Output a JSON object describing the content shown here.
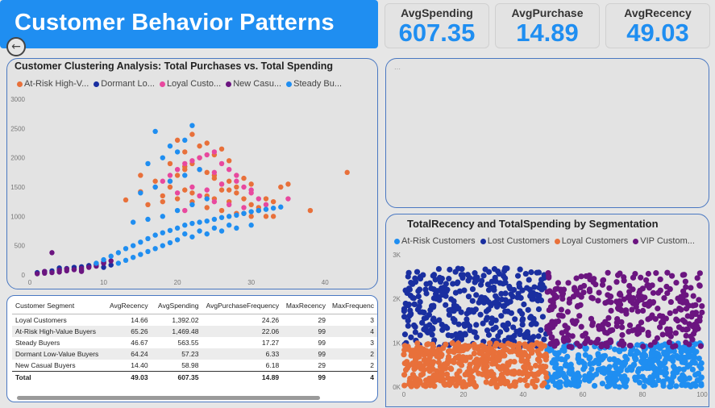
{
  "header": {
    "title": "Customer Behavior Patterns"
  },
  "kpis": [
    {
      "label": "AvgSpending",
      "value": "607.35"
    },
    {
      "label": "AvgPurchase",
      "value": "14.89"
    },
    {
      "label": "AvgRecency",
      "value": "49.03"
    }
  ],
  "colors": {
    "accent": "#1f8ef1",
    "orange": "#e8703a",
    "navy": "#1a2fa0",
    "pink": "#e8489e",
    "purple": "#6b1580",
    "blue": "#1f8ef1"
  },
  "chart_data": [
    {
      "type": "scatter",
      "title": "Customer Clustering Analysis: Total Purchases vs. Total Spending",
      "legend": [
        "At-Risk High-V...",
        "Dormant Lo...",
        "Loyal Custo...",
        "New Casu...",
        "Steady Bu..."
      ],
      "legend_colors": [
        "#e8703a",
        "#1a2fa0",
        "#e8489e",
        "#6b1580",
        "#1f8ef1"
      ],
      "xlim": [
        0,
        45
      ],
      "ylim": [
        0,
        3000
      ],
      "xticks": [
        "0",
        "10",
        "20",
        "30",
        "40"
      ],
      "yticks": [
        "0",
        "500",
        "1000",
        "1500",
        "2000",
        "2500",
        "3000"
      ],
      "series": [
        {
          "name": "At-Risk High-V...",
          "color": "#e8703a",
          "x": [
            13,
            15,
            17,
            18,
            19,
            20,
            21,
            22,
            23,
            24,
            25,
            26,
            27,
            28,
            29,
            30,
            31,
            32,
            33,
            34,
            35,
            21,
            23,
            25,
            27,
            22,
            24,
            26,
            28,
            30,
            16,
            18,
            20,
            22,
            24,
            26,
            29,
            31,
            33,
            38,
            43,
            19,
            21,
            23,
            25,
            27,
            29,
            15,
            17,
            19,
            21,
            23,
            25,
            27,
            20,
            22,
            24,
            26,
            28,
            30,
            32
          ],
          "y": [
            1280,
            1420,
            1500,
            1350,
            1600,
            1700,
            1800,
            1900,
            2000,
            1750,
            1650,
            1550,
            1450,
            1400,
            1300,
            1200,
            1100,
            1000,
            1250,
            1500,
            1550,
            2100,
            2200,
            2050,
            1950,
            1400,
            1350,
            1450,
            1500,
            1550,
            1200,
            1250,
            1300,
            1250,
            1150,
            1100,
            1050,
            1150,
            1000,
            1100,
            1750,
            1900,
            1850,
            1800,
            1700,
            1600,
            1650,
            1700,
            1600,
            1500,
            1450,
            1350,
            1300,
            1250,
            2300,
            2400,
            2250,
            2150,
            1050,
            1000,
            1300
          ]
        },
        {
          "name": "Dormant Lo...",
          "color": "#1a2fa0",
          "x": [
            1,
            2,
            3,
            4,
            5,
            6,
            7,
            8,
            9,
            10,
            11,
            4,
            6,
            8,
            10,
            2,
            7
          ],
          "y": [
            40,
            60,
            70,
            90,
            110,
            130,
            140,
            160,
            180,
            200,
            170,
            120,
            100,
            150,
            130,
            50,
            80
          ]
        },
        {
          "name": "Loyal Custo...",
          "color": "#e8489e",
          "x": [
            18,
            19,
            20,
            21,
            22,
            23,
            24,
            25,
            26,
            27,
            28,
            29,
            30,
            31,
            32,
            22,
            24,
            26,
            28,
            30,
            20,
            23,
            25,
            27,
            29,
            21,
            25,
            35
          ],
          "y": [
            1600,
            1700,
            1800,
            1900,
            1950,
            2000,
            2050,
            2100,
            1900,
            1800,
            1700,
            1500,
            1400,
            1300,
            1200,
            1500,
            1450,
            1550,
            1600,
            1450,
            1400,
            1350,
            1250,
            1200,
            1150,
            1100,
            1750,
            1300
          ]
        },
        {
          "name": "New Casu...",
          "color": "#6b1580",
          "x": [
            1,
            2,
            2,
            3,
            4,
            5,
            5,
            6,
            7,
            8,
            9,
            9,
            10,
            10,
            11,
            3,
            4,
            7
          ],
          "y": [
            20,
            30,
            60,
            40,
            50,
            70,
            100,
            90,
            110,
            130,
            150,
            180,
            200,
            220,
            240,
            380,
            80,
            60
          ]
        },
        {
          "name": "Steady Bu...",
          "color": "#1f8ef1",
          "x": [
            9,
            10,
            11,
            12,
            13,
            14,
            15,
            16,
            17,
            18,
            19,
            20,
            21,
            22,
            23,
            24,
            25,
            26,
            27,
            28,
            29,
            30,
            31,
            32,
            33,
            34,
            12,
            14,
            16,
            18,
            20,
            22,
            24,
            26,
            28,
            30,
            13,
            15,
            17,
            19,
            21,
            23,
            25,
            27,
            14,
            16,
            18,
            20,
            22,
            24,
            15,
            17,
            19,
            21,
            23,
            16,
            18,
            20,
            19,
            21,
            17,
            22
          ],
          "y": [
            200,
            260,
            320,
            380,
            450,
            500,
            560,
            620,
            680,
            720,
            760,
            800,
            850,
            880,
            900,
            920,
            950,
            980,
            1000,
            1020,
            1050,
            1080,
            1100,
            1120,
            1140,
            1160,
            200,
            300,
            400,
            500,
            600,
            650,
            700,
            750,
            800,
            850,
            250,
            350,
            450,
            550,
            700,
            750,
            800,
            850,
            900,
            950,
            1000,
            1100,
            1200,
            1300,
            1400,
            1500,
            1600,
            1700,
            1800,
            1900,
            2000,
            2100,
            2200,
            2300,
            2450,
            2550
          ]
        }
      ]
    },
    {
      "type": "scatter",
      "title": "TotalRecency and TotalSpending by Segmentation",
      "legend": [
        "At-Risk Customers",
        "Lost Customers",
        "Loyal Customers",
        "VIP Custom..."
      ],
      "legend_colors": [
        "#1f8ef1",
        "#1a2fa0",
        "#e8703a",
        "#6b1580"
      ],
      "xlim": [
        0,
        100
      ],
      "ylim": [
        0,
        3000
      ],
      "xticks": [
        "0",
        "20",
        "40",
        "60",
        "80",
        "100"
      ],
      "yticks": [
        "0K",
        "1K",
        "2K",
        "3K"
      ],
      "regions": [
        {
          "name": "At-Risk Customers",
          "color": "#1f8ef1",
          "x": [
            48,
            100
          ],
          "y": [
            0,
            1000
          ],
          "count": 420
        },
        {
          "name": "Lost Customers",
          "color": "#1a2fa0",
          "x": [
            0,
            48
          ],
          "y": [
            900,
            2500
          ],
          "count": 360
        },
        {
          "name": "Loyal Customers",
          "color": "#e8703a",
          "x": [
            0,
            48
          ],
          "y": [
            0,
            1000
          ],
          "count": 420
        },
        {
          "name": "VIP Custom...",
          "color": "#6b1580",
          "x": [
            48,
            100
          ],
          "y": [
            900,
            2400
          ],
          "count": 330
        }
      ]
    }
  ],
  "table": {
    "columns": [
      "Customer Segment",
      "AvgRecency",
      "AvgSpending",
      "AvgPurchaseFrequency",
      "MaxRecency",
      "MaxFrequenc"
    ],
    "rows": [
      [
        "Loyal Customers",
        "14.66",
        "1,392.02",
        "24.26",
        "29",
        "3"
      ],
      [
        "At-Risk High-Value Buyers",
        "65.26",
        "1,469.48",
        "22.06",
        "99",
        "4"
      ],
      [
        "Steady Buyers",
        "46.67",
        "563.55",
        "17.27",
        "99",
        "3"
      ],
      [
        "Dormant Low-Value Buyers",
        "64.24",
        "57.23",
        "6.33",
        "99",
        "2"
      ],
      [
        "New Casual Buyers",
        "14.40",
        "58.98",
        "6.18",
        "29",
        "2"
      ]
    ],
    "total": [
      "Total",
      "49.03",
      "607.35",
      "14.89",
      "99",
      "4"
    ]
  }
}
